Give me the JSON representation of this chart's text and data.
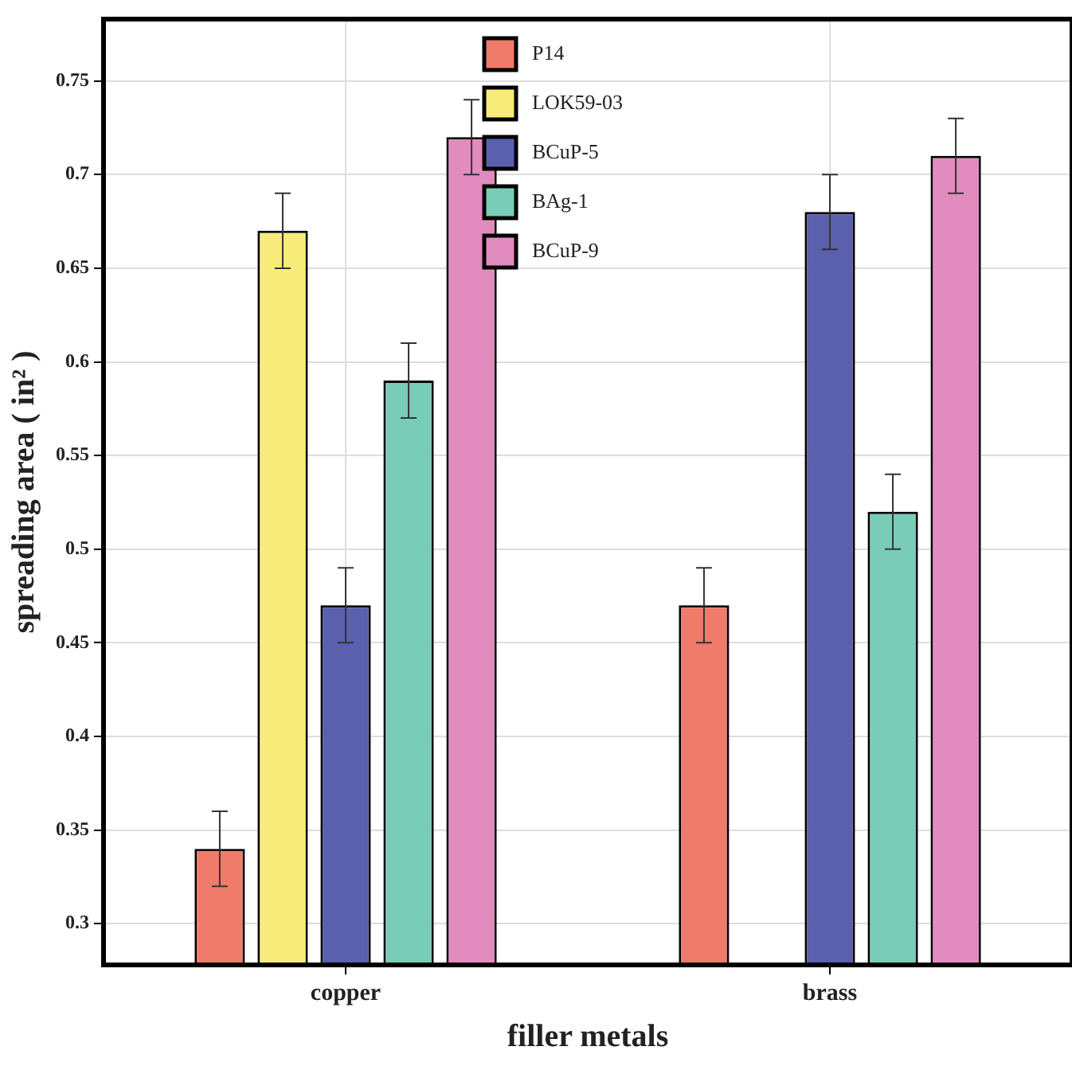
{
  "chart_data": {
    "type": "bar",
    "xlabel": "filler metals",
    "ylabel": "spreading area ( in² )",
    "categories": [
      "copper",
      "brass"
    ],
    "series": [
      {
        "name": "P14",
        "color": "#f07b6a",
        "values": [
          0.34,
          0.47
        ],
        "errors": [
          0.02,
          0.02
        ]
      },
      {
        "name": "LOK59-03",
        "color": "#f7ec7a",
        "values": [
          0.67,
          null
        ],
        "errors": [
          0.02,
          null
        ]
      },
      {
        "name": "BCuP-5",
        "color": "#5a5fae",
        "values": [
          0.47,
          0.68
        ],
        "errors": [
          0.02,
          0.02
        ]
      },
      {
        "name": "BAg-1",
        "color": "#79cdb8",
        "values": [
          0.59,
          0.52
        ],
        "errors": [
          0.02,
          0.02
        ]
      },
      {
        "name": "BCuP-9",
        "color": "#e28bbf",
        "values": [
          0.72,
          0.71
        ],
        "errors": [
          0.02,
          0.02
        ]
      }
    ],
    "ylim": [
      0.278,
      0.783
    ],
    "yticks": [
      0.3,
      0.35,
      0.4,
      0.45,
      0.5,
      0.55,
      0.6,
      0.65,
      0.7,
      0.75
    ],
    "grid": true,
    "legend": "top"
  }
}
